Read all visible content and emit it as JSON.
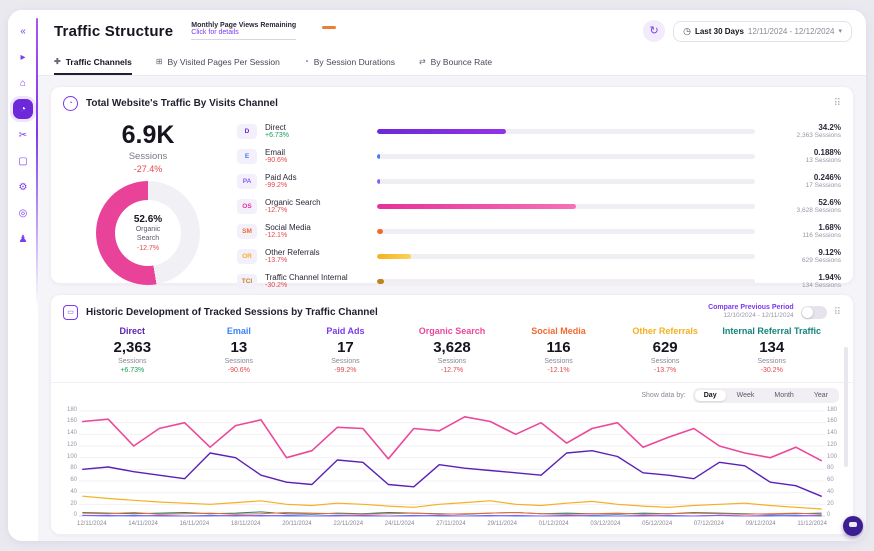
{
  "header": {
    "title": "Traffic Structure",
    "quota_title": "Monthly Page Views Remaining",
    "quota_link": "Click for details",
    "range_label": "Last 30 Days",
    "range_dates": "12/11/2024 - 12/12/2024"
  },
  "sidebar": {
    "icons": [
      {
        "name": "collapse-sidebar-icon",
        "glyph": "«",
        "active": false
      },
      {
        "name": "play-icon",
        "glyph": "▸",
        "active": false
      },
      {
        "name": "home-icon",
        "glyph": "⌂",
        "active": false
      },
      {
        "name": "traffic-structure-icon",
        "glyph": "◔",
        "active": true
      },
      {
        "name": "tools-icon",
        "glyph": "✂",
        "active": false
      },
      {
        "name": "box-icon",
        "glyph": "▢",
        "active": false
      },
      {
        "name": "settings-icon",
        "glyph": "⚙",
        "active": false
      },
      {
        "name": "target-icon",
        "glyph": "◎",
        "active": false
      },
      {
        "name": "user-icon",
        "glyph": "♟",
        "active": false
      }
    ]
  },
  "tabs": [
    {
      "label": "Traffic Channels",
      "icon": "✚",
      "active": true
    },
    {
      "label": "By Visited Pages Per Session",
      "icon": "⊞",
      "active": false
    },
    {
      "label": "By Session Durations",
      "icon": "◔",
      "active": false
    },
    {
      "label": "By Bounce Rate",
      "icon": "⇄",
      "active": false
    }
  ],
  "card1": {
    "title": "Total Website's Traffic By Visits Channel",
    "total": "6.9K",
    "total_label": "Sessions",
    "total_change": "-27.4%",
    "donut": {
      "pct": 52.6,
      "pct_label": "52.6%",
      "label": "Organic Search",
      "change": "-12.7%",
      "color": "#e94399",
      "track_color": "#f1f0f5"
    },
    "rows": [
      {
        "abbr": "D",
        "label": "Direct",
        "change": "+6.73%",
        "positive": true,
        "pct": 34.2,
        "pct_label": "34.2%",
        "sessions": "2,363 Sessions",
        "color": "#6d28d9",
        "color2": "#9333ea"
      },
      {
        "abbr": "E",
        "label": "Email",
        "change": "-90.6%",
        "positive": false,
        "pct": 0.188,
        "pct_label": "0.188%",
        "sessions": "13 Sessions",
        "color": "#3b82f6",
        "color2": "#3b82f6"
      },
      {
        "abbr": "PA",
        "label": "Paid Ads",
        "change": "-99.2%",
        "positive": false,
        "pct": 0.246,
        "pct_label": "0.246%",
        "sessions": "17 Sessions",
        "color": "#8b5cf6",
        "color2": "#8b5cf6"
      },
      {
        "abbr": "OS",
        "label": "Organic Search",
        "change": "-12.7%",
        "positive": false,
        "pct": 52.6,
        "pct_label": "52.6%",
        "sessions": "3,628 Sessions",
        "color": "#e6309b",
        "color2": "#f472b6"
      },
      {
        "abbr": "SM",
        "label": "Social Media",
        "change": "-12.1%",
        "positive": false,
        "pct": 1.68,
        "pct_label": "1.68%",
        "sessions": "116 Sessions",
        "color": "#f2692e",
        "color2": "#f2692e"
      },
      {
        "abbr": "OR",
        "label": "Other Referrals",
        "change": "-13.7%",
        "positive": false,
        "pct": 9.12,
        "pct_label": "9.12%",
        "sessions": "629 Sessions",
        "color": "#f5b01e",
        "color2": "#fbd35b"
      },
      {
        "abbr": "TCI",
        "label": "Traffic Channel Internal",
        "change": "-30.2%",
        "positive": false,
        "pct": 1.94,
        "pct_label": "1.94%",
        "sessions": "134 Sessions",
        "color": "#c0821d",
        "color2": "#c0821d"
      }
    ]
  },
  "card2": {
    "title": "Historic Development of Tracked Sessions by Traffic Channel",
    "compare_label": "Compare Previous Period",
    "compare_dates": "12/10/2024 - 12/11/2024",
    "compare_toggle_on": false,
    "summary": [
      {
        "name": "Direct",
        "value": "2,363",
        "sub": "Sessions",
        "change": "+6.73%",
        "positive": true,
        "color": "#5b21b6"
      },
      {
        "name": "Email",
        "value": "13",
        "sub": "Sessions",
        "change": "-90.6%",
        "positive": false,
        "color": "#3b82f6"
      },
      {
        "name": "Paid Ads",
        "value": "17",
        "sub": "Sessions",
        "change": "-99.2%",
        "positive": false,
        "color": "#7c3aed"
      },
      {
        "name": "Organic Search",
        "value": "3,628",
        "sub": "Sessions",
        "change": "-12.7%",
        "positive": false,
        "color": "#ec4899"
      },
      {
        "name": "Social Media",
        "value": "116",
        "sub": "Sessions",
        "change": "-12.1%",
        "positive": false,
        "color": "#f2692e"
      },
      {
        "name": "Other Referrals",
        "value": "629",
        "sub": "Sessions",
        "change": "-13.7%",
        "positive": false,
        "color": "#f5b01e"
      },
      {
        "name": "Internal Referral Traffic",
        "value": "134",
        "sub": "Sessions",
        "change": "-30.2%",
        "positive": false,
        "color": "#13857a"
      }
    ],
    "show_data_by": "Show data by:",
    "granularity": [
      {
        "label": "Day",
        "active": true
      },
      {
        "label": "Week",
        "active": false
      },
      {
        "label": "Month",
        "active": false
      },
      {
        "label": "Year",
        "active": false
      }
    ]
  },
  "chart_data": {
    "type": "line",
    "title": "Historic Development of Tracked Sessions by Traffic Channel",
    "x": [
      "12/11/2024",
      "13/11/2024",
      "14/11/2024",
      "15/11/2024",
      "16/11/2024",
      "17/11/2024",
      "18/11/2024",
      "19/11/2024",
      "20/11/2024",
      "21/11/2024",
      "22/11/2024",
      "23/11/2024",
      "24/11/2024",
      "25/11/2024",
      "26/11/2024",
      "27/11/2024",
      "28/11/2024",
      "29/11/2024",
      "30/11/2024",
      "01/12/2024",
      "02/12/2024",
      "03/12/2024",
      "04/12/2024",
      "05/12/2024",
      "06/12/2024",
      "07/12/2024",
      "08/12/2024",
      "09/12/2024",
      "10/12/2024",
      "11/12/2024"
    ],
    "x_tick_labels": [
      "12/11/2024",
      "14/11/2024",
      "16/11/2024",
      "18/11/2024",
      "20/11/2024",
      "22/11/2024",
      "24/11/2024",
      "27/11/2024",
      "29/11/2024",
      "01/12/2024",
      "03/12/2024",
      "05/12/2024",
      "07/12/2024",
      "09/12/2024",
      "11/12/2024"
    ],
    "ylim": [
      0,
      180
    ],
    "yticks": [
      0,
      20,
      40,
      60,
      80,
      100,
      120,
      140,
      160,
      180
    ],
    "grid": true,
    "legend_position": "top-summary-row",
    "series": [
      {
        "name": "Email",
        "color": "#3b82f6",
        "width": 1,
        "values": [
          1,
          0,
          1,
          0,
          0,
          1,
          0,
          1,
          0,
          0,
          1,
          0,
          0,
          1,
          0,
          0,
          1,
          0,
          0,
          1,
          0,
          0,
          1,
          0,
          0,
          1,
          0,
          0,
          1,
          0
        ]
      },
      {
        "name": "Paid Ads",
        "color": "#8b5cf6",
        "width": 1,
        "values": [
          1,
          1,
          0,
          1,
          0,
          0,
          1,
          0,
          1,
          0,
          0,
          1,
          0,
          0,
          1,
          0,
          0,
          1,
          0,
          0,
          1,
          0,
          0,
          1,
          0,
          1,
          0,
          1,
          0,
          1
        ]
      },
      {
        "name": "Internal Referral Traffic",
        "color": "#13857a",
        "width": 1,
        "values": [
          6,
          5,
          4,
          5,
          6,
          4,
          5,
          7,
          4,
          3,
          5,
          4,
          6,
          5,
          4,
          3,
          5,
          6,
          4,
          5,
          4,
          3,
          5,
          4,
          6,
          5,
          4,
          3,
          4,
          5
        ]
      },
      {
        "name": "Social Media",
        "color": "#f2692e",
        "width": 1,
        "values": [
          5,
          4,
          6,
          3,
          4,
          5,
          3,
          4,
          6,
          5,
          4,
          3,
          4,
          5,
          3,
          4,
          5,
          6,
          4,
          3,
          4,
          5,
          3,
          4,
          5,
          4,
          3,
          4,
          5,
          3
        ]
      },
      {
        "name": "Other Referrals",
        "color": "#f5b01e",
        "width": 1.2,
        "values": [
          34,
          30,
          27,
          24,
          22,
          20,
          23,
          26,
          20,
          18,
          22,
          20,
          17,
          15,
          20,
          23,
          26,
          20,
          18,
          22,
          25,
          20,
          17,
          15,
          18,
          20,
          22,
          18,
          15,
          12
        ]
      },
      {
        "name": "Direct",
        "color": "#5b21b6",
        "width": 1.4,
        "values": [
          80,
          84,
          76,
          70,
          64,
          108,
          100,
          70,
          58,
          54,
          96,
          92,
          54,
          50,
          88,
          82,
          78,
          74,
          70,
          108,
          112,
          102,
          74,
          70,
          64,
          92,
          86,
          58,
          52,
          34
        ]
      },
      {
        "name": "Organic Search",
        "color": "#ec4899",
        "width": 1.6,
        "values": [
          162,
          166,
          120,
          150,
          160,
          118,
          155,
          165,
          100,
          112,
          152,
          150,
          98,
          150,
          146,
          170,
          162,
          140,
          160,
          125,
          150,
          160,
          118,
          135,
          150,
          120,
          108,
          100,
          118,
          95
        ]
      }
    ]
  }
}
